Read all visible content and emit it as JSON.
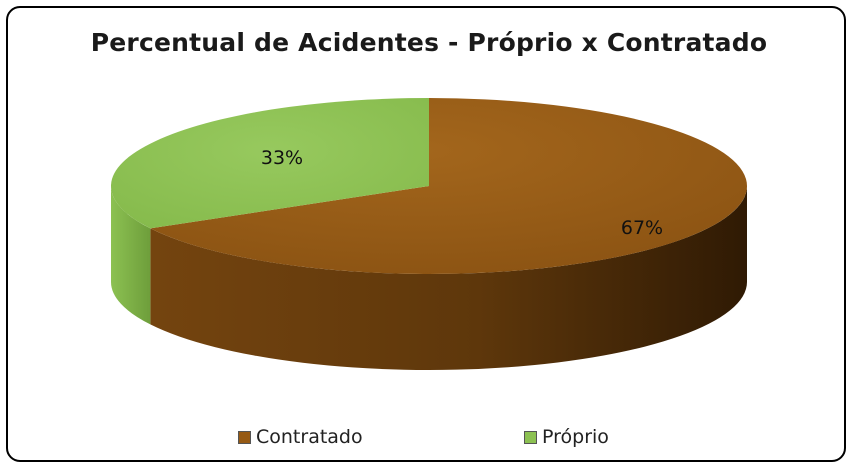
{
  "chart_data": {
    "type": "pie",
    "title": "Percentual de Acidentes - Próprio x Contratado",
    "slices": [
      {
        "name": "Contratado",
        "value": 67,
        "label": "67%",
        "color": "#965a14"
      },
      {
        "name": "Próprio",
        "value": 33,
        "label": "33%",
        "color": "#8cc152"
      }
    ],
    "legend_position": "bottom",
    "style": "3d"
  }
}
